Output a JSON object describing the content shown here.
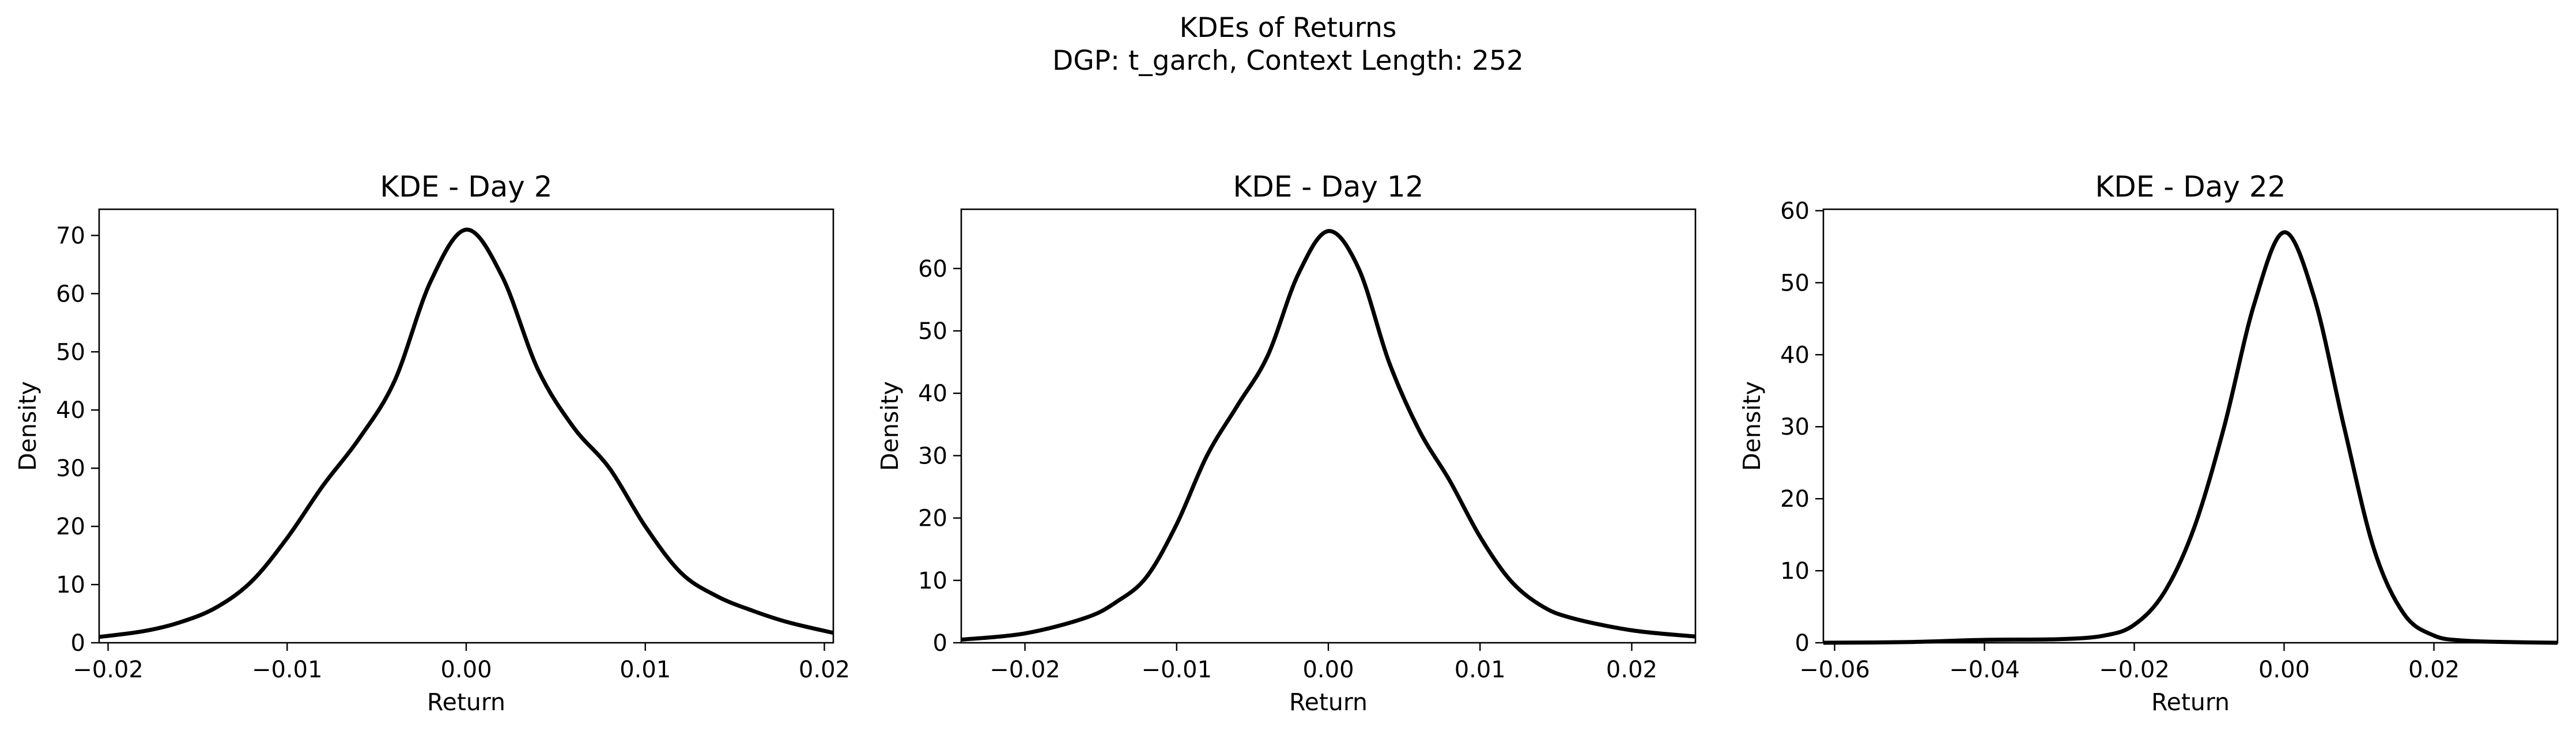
{
  "figure": {
    "suptitle_line1": "KDEs of Returns",
    "suptitle_line2": "DGP: t_garch, Context Length: 252"
  },
  "chart_data": [
    {
      "type": "line",
      "title": "KDE - Day 2",
      "xlabel": "Return",
      "ylabel": "Density",
      "xlim": [
        -0.0205,
        0.0205
      ],
      "ylim": [
        0,
        74.5
      ],
      "xticks": [
        -0.02,
        -0.01,
        0.0,
        0.01,
        0.02
      ],
      "xtick_labels": [
        "−0.02",
        "−0.01",
        "0.00",
        "0.01",
        "0.02"
      ],
      "yticks": [
        0,
        10,
        20,
        30,
        40,
        50,
        60,
        70
      ],
      "ytick_labels": [
        "0",
        "10",
        "20",
        "30",
        "40",
        "50",
        "60",
        "70"
      ],
      "grid": false,
      "line_color": "#000000",
      "series": [
        {
          "x": [
            -0.0205,
            -0.018,
            -0.016,
            -0.014,
            -0.012,
            -0.01,
            -0.008,
            -0.006,
            -0.004,
            -0.002,
            0.0,
            0.002,
            0.004,
            0.006,
            0.008,
            0.01,
            0.012,
            0.014,
            0.016,
            0.018,
            0.0205
          ],
          "y": [
            1,
            2,
            3.5,
            6,
            10.5,
            18,
            27,
            35,
            45,
            62,
            71,
            63,
            47,
            37,
            30,
            20,
            12,
            8,
            5.5,
            3.5,
            1.7
          ]
        }
      ]
    },
    {
      "type": "line",
      "title": "KDE - Day 12",
      "xlabel": "Return",
      "ylabel": "Density",
      "xlim": [
        -0.0242,
        0.0242
      ],
      "ylim": [
        0,
        69.5
      ],
      "xticks": [
        -0.02,
        -0.01,
        0.0,
        0.01,
        0.02
      ],
      "xtick_labels": [
        "−0.02",
        "−0.01",
        "0.00",
        "0.01",
        "0.02"
      ],
      "yticks": [
        0,
        10,
        20,
        30,
        40,
        50,
        60
      ],
      "ytick_labels": [
        "0",
        "10",
        "20",
        "30",
        "40",
        "50",
        "60"
      ],
      "grid": false,
      "line_color": "#000000",
      "series": [
        {
          "x": [
            -0.0242,
            -0.02,
            -0.016,
            -0.014,
            -0.012,
            -0.01,
            -0.008,
            -0.006,
            -0.004,
            -0.002,
            0.0,
            0.002,
            0.004,
            0.006,
            0.008,
            0.01,
            0.012,
            0.014,
            0.016,
            0.02,
            0.0242
          ],
          "y": [
            0.5,
            1.5,
            4,
            6.5,
            10.5,
            19,
            30,
            38,
            46,
            59,
            66,
            60,
            45,
            34,
            26,
            17,
            10,
            6,
            4,
            2,
            1
          ]
        }
      ]
    },
    {
      "type": "line",
      "title": "KDE - Day 22",
      "xlabel": "Return",
      "ylabel": "Density",
      "xlim": [
        -0.0615,
        0.0365
      ],
      "ylim": [
        0,
        60.2
      ],
      "xticks": [
        -0.06,
        -0.04,
        -0.02,
        0.0,
        0.02
      ],
      "xtick_labels": [
        "−0.06",
        "−0.04",
        "−0.02",
        "0.00",
        "0.02"
      ],
      "yticks": [
        0,
        10,
        20,
        30,
        40,
        50,
        60
      ],
      "ytick_labels": [
        "0",
        "10",
        "20",
        "30",
        "40",
        "50",
        "60"
      ],
      "grid": false,
      "line_color": "#000000",
      "series": [
        {
          "x": [
            -0.0615,
            -0.05,
            -0.04,
            -0.03,
            -0.024,
            -0.02,
            -0.016,
            -0.012,
            -0.008,
            -0.004,
            0.0,
            0.004,
            0.008,
            0.012,
            0.016,
            0.02,
            0.024,
            0.03,
            0.0365
          ],
          "y": [
            0,
            0.1,
            0.4,
            0.5,
            1,
            2.5,
            7,
            16,
            30,
            47,
            57,
            48,
            30,
            13,
            4,
            1,
            0.3,
            0.1,
            0
          ]
        }
      ]
    }
  ]
}
